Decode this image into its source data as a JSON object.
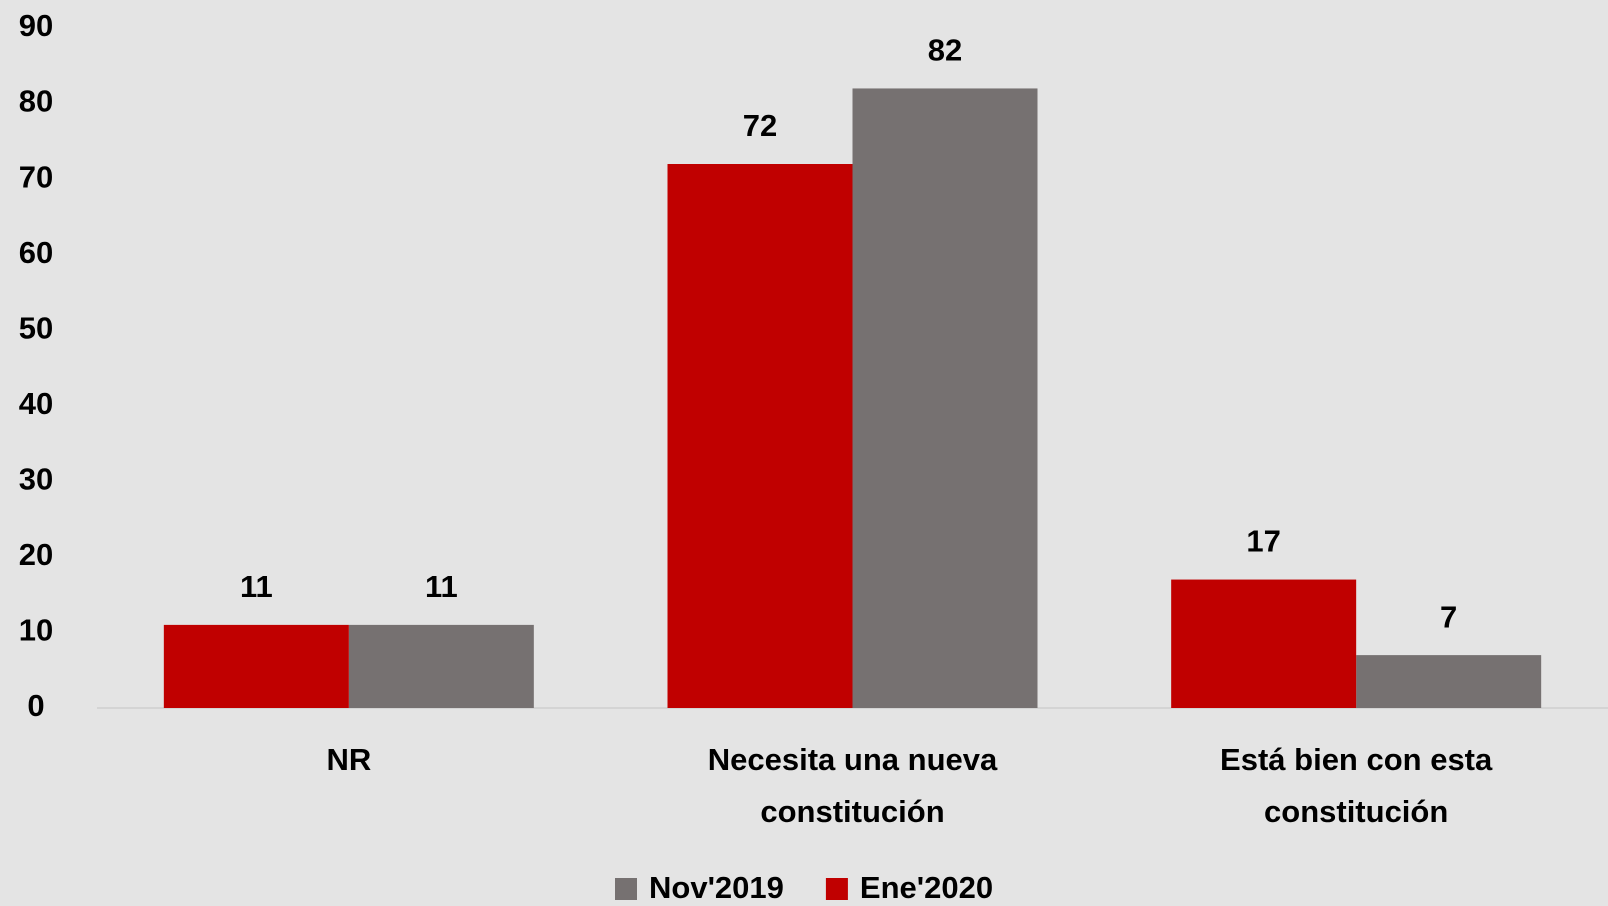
{
  "chart_data": {
    "type": "bar",
    "categories": [
      "NR",
      "Necesita una nueva constitución",
      "Está bien con esta constitución"
    ],
    "series": [
      {
        "name": "Nov'2019",
        "color": "#767171",
        "values": [
          11,
          82,
          7
        ]
      },
      {
        "name": "Ene'2020",
        "color": "#c00000",
        "values": [
          11,
          72,
          17
        ]
      }
    ],
    "ylim": [
      0,
      90
    ],
    "yticks": [
      0,
      10,
      20,
      30,
      40,
      50,
      60,
      70,
      80,
      90
    ],
    "grid": false,
    "legend": "bottom"
  }
}
